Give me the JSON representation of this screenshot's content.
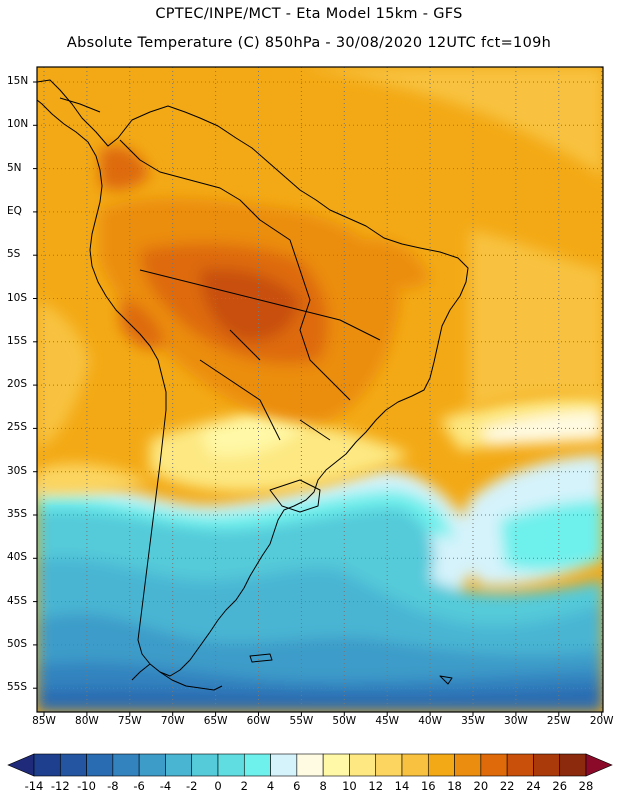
{
  "header": {
    "line1": "CPTEC/INPE/MCT -  Eta Model 15km - GFS",
    "line2": "Absolute Temperature (C) 850hPa - 30/08/2020 12UTC fct=109h"
  },
  "map": {
    "lat_labels": [
      "15N",
      "10N",
      "5N",
      "EQ",
      "5S",
      "10S",
      "15S",
      "20S",
      "25S",
      "30S",
      "35S",
      "40S",
      "45S",
      "50S",
      "55S"
    ],
    "lon_labels": [
      "85W",
      "80W",
      "75W",
      "70W",
      "65W",
      "60W",
      "55W",
      "50W",
      "45W",
      "40W",
      "35W",
      "30W",
      "25W",
      "20W"
    ]
  },
  "colorbar": {
    "labels": [
      "-14",
      "-12",
      "-10",
      "-8",
      "-6",
      "-4",
      "-2",
      "0",
      "2",
      "4",
      "6",
      "8",
      "10",
      "12",
      "14",
      "16",
      "18",
      "20",
      "22",
      "24",
      "26",
      "28"
    ],
    "colors": [
      "#1d3f8e",
      "#2355a0",
      "#2a6cb1",
      "#3383bf",
      "#3e9cc9",
      "#4ab5d3",
      "#55cad9",
      "#5fdde0",
      "#6ef0ec",
      "#d5f3fb",
      "#fffbe3",
      "#fff8a6",
      "#fde882",
      "#fcd561",
      "#f8c240",
      "#f3a915",
      "#eb8d0f",
      "#de6a09",
      "#c8500a",
      "#ab3a0a",
      "#8b2a0c"
    ],
    "low_arrow_color": "#1f2a7a",
    "high_arrow_color": "#8b0a2a"
  }
}
